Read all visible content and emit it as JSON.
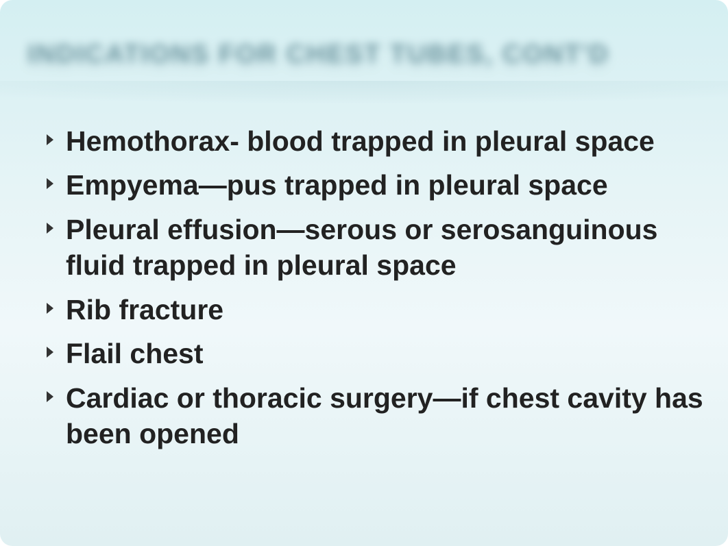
{
  "slide": {
    "title": "INDICATIONS FOR CHEST TUBES, CONT'D",
    "background_gradient": [
      "#d4eff2",
      "#e6f4f6",
      "#f0f8fa",
      "#e0f0f2"
    ],
    "title_color": "#3a6b78",
    "title_fontsize": 38,
    "body_fontsize": 41,
    "body_color": "#222222",
    "bullets": [
      "Hemothorax- blood trapped in pleural space",
      "Empyema—pus trapped in pleural space",
      "Pleural effusion—serous or serosanguinous fluid trapped in pleural space",
      " Rib fracture",
      "Flail chest",
      "Cardiac or thoracic surgery—if chest cavity has been opened"
    ]
  }
}
